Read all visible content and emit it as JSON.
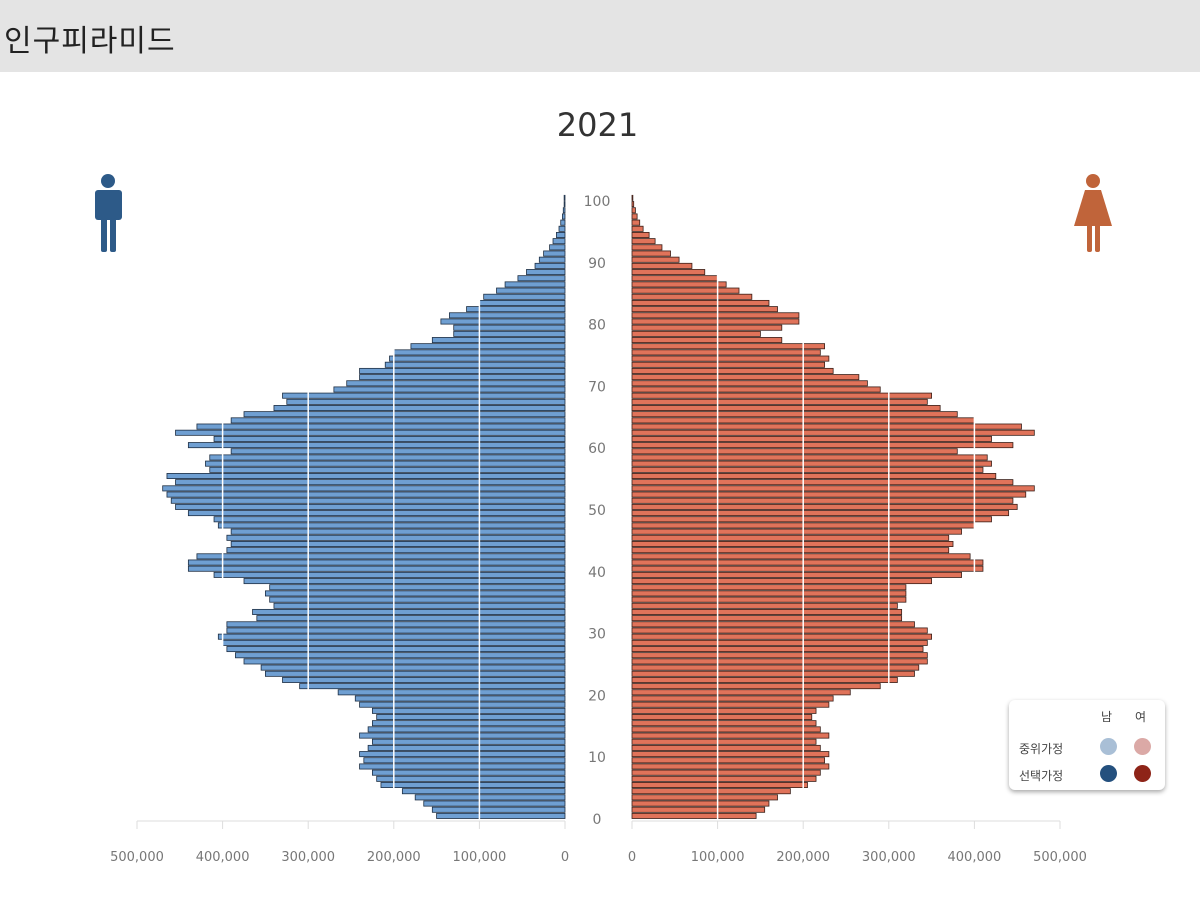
{
  "header": {
    "title": "인구피라미드"
  },
  "chart_data": {
    "type": "bar",
    "subtype": "population-pyramid",
    "title": "2021",
    "ages": [
      0,
      1,
      2,
      3,
      4,
      5,
      6,
      7,
      8,
      9,
      10,
      11,
      12,
      13,
      14,
      15,
      16,
      17,
      18,
      19,
      20,
      21,
      22,
      23,
      24,
      25,
      26,
      27,
      28,
      29,
      30,
      31,
      32,
      33,
      34,
      35,
      36,
      37,
      38,
      39,
      40,
      41,
      42,
      43,
      44,
      45,
      46,
      47,
      48,
      49,
      50,
      51,
      52,
      53,
      54,
      55,
      56,
      57,
      58,
      59,
      60,
      61,
      62,
      63,
      64,
      65,
      66,
      67,
      68,
      69,
      70,
      71,
      72,
      73,
      74,
      75,
      76,
      77,
      78,
      79,
      80,
      81,
      82,
      83,
      84,
      85,
      86,
      87,
      88,
      89,
      90,
      91,
      92,
      93,
      94,
      95,
      96,
      97,
      98,
      99,
      100
    ],
    "age_ticks": [
      "0",
      "10",
      "20",
      "30",
      "40",
      "50",
      "60",
      "70",
      "80",
      "90",
      "100"
    ],
    "x_ticks_male": [
      "500,000",
      "400,000",
      "300,000",
      "200,000",
      "100,000",
      "0"
    ],
    "x_ticks_female": [
      "0",
      "100,000",
      "200,000",
      "300,000",
      "400,000",
      "500,000"
    ],
    "xlim": [
      0,
      500000
    ],
    "grid": "vertical at 100,000 intervals",
    "series": [
      {
        "name": "남",
        "color": "#6f9fd2",
        "values": [
          150000,
          155000,
          165000,
          175000,
          190000,
          215000,
          220000,
          225000,
          240000,
          235000,
          240000,
          230000,
          225000,
          240000,
          230000,
          225000,
          220000,
          225000,
          240000,
          245000,
          265000,
          310000,
          330000,
          350000,
          355000,
          375000,
          385000,
          395000,
          400000,
          405000,
          395000,
          395000,
          360000,
          365000,
          340000,
          345000,
          350000,
          345000,
          375000,
          410000,
          440000,
          440000,
          430000,
          395000,
          390000,
          395000,
          390000,
          405000,
          410000,
          440000,
          455000,
          460000,
          465000,
          470000,
          455000,
          465000,
          415000,
          420000,
          415000,
          390000,
          440000,
          410000,
          455000,
          430000,
          390000,
          375000,
          340000,
          325000,
          330000,
          270000,
          255000,
          240000,
          240000,
          210000,
          205000,
          200000,
          180000,
          155000,
          130000,
          130000,
          145000,
          135000,
          115000,
          100000,
          95000,
          80000,
          70000,
          55000,
          45000,
          35000,
          30000,
          25000,
          18000,
          14000,
          10000,
          7000,
          5000,
          3000,
          2000,
          1000,
          1000
        ]
      },
      {
        "name": "여",
        "color": "#e0735a",
        "values": [
          145000,
          155000,
          160000,
          170000,
          185000,
          205000,
          215000,
          220000,
          230000,
          225000,
          230000,
          220000,
          215000,
          230000,
          220000,
          215000,
          210000,
          215000,
          230000,
          235000,
          255000,
          290000,
          310000,
          330000,
          335000,
          345000,
          345000,
          340000,
          345000,
          350000,
          345000,
          330000,
          315000,
          315000,
          310000,
          320000,
          320000,
          320000,
          350000,
          385000,
          410000,
          410000,
          395000,
          370000,
          375000,
          370000,
          385000,
          400000,
          420000,
          440000,
          450000,
          445000,
          460000,
          470000,
          445000,
          425000,
          410000,
          420000,
          415000,
          380000,
          445000,
          420000,
          470000,
          455000,
          400000,
          380000,
          360000,
          345000,
          350000,
          290000,
          275000,
          265000,
          235000,
          225000,
          230000,
          220000,
          225000,
          175000,
          150000,
          175000,
          195000,
          195000,
          170000,
          160000,
          140000,
          125000,
          110000,
          100000,
          85000,
          70000,
          55000,
          45000,
          35000,
          27000,
          20000,
          13000,
          9000,
          6000,
          4000,
          2000,
          1000
        ]
      }
    ],
    "legend": {
      "placement": "bottom-right",
      "columns": [
        "남",
        "여"
      ],
      "rows": [
        {
          "label": "중위가정",
          "colors": [
            "#a9bfd6",
            "#dba9a6"
          ]
        },
        {
          "label": "선택가정",
          "colors": [
            "#24507e",
            "#8e2418"
          ]
        }
      ]
    },
    "icons": {
      "left": "male-person-icon",
      "right": "female-person-icon",
      "male_color": "#2d5a88",
      "female_color": "#c0643a"
    }
  }
}
